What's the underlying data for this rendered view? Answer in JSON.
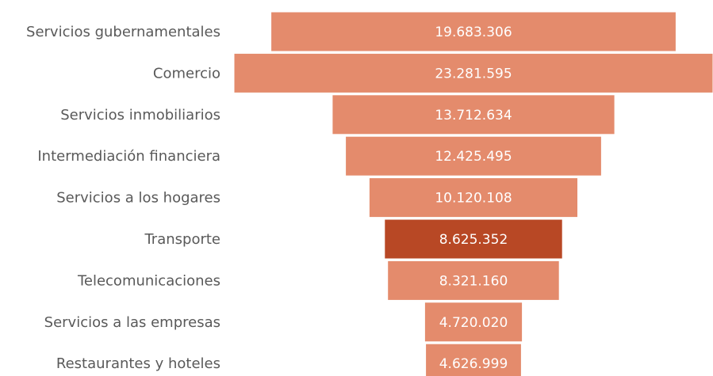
{
  "chart_data": {
    "type": "bar",
    "orientation": "horizontal-funnel",
    "categories": [
      "Servicios gubernamentales",
      "Comercio",
      "Servicios inmobiliarios",
      "Intermediación financiera",
      "Servicios a los hogares",
      "Transporte",
      "Telecomunicaciones",
      "Servicios a las empresas",
      "Restaurantes y hoteles"
    ],
    "values": [
      19683306,
      23281595,
      13712634,
      12425495,
      10120108,
      8625352,
      8321160,
      4720020,
      4626999
    ],
    "value_labels": [
      "19.683.306",
      "23.281.595",
      "13.712.634",
      "12.425.495",
      "10.120.108",
      "8.625.352",
      "8.321.160",
      "4.720.020",
      "4.626.999"
    ],
    "highlight_index": 5,
    "title": "",
    "xlabel": "",
    "ylabel": "",
    "grid": false,
    "legend": "none",
    "colors": {
      "bar": "#e48b6c",
      "highlight": "#b84825",
      "label_text": "#595959",
      "value_text": "#ffffff"
    }
  }
}
